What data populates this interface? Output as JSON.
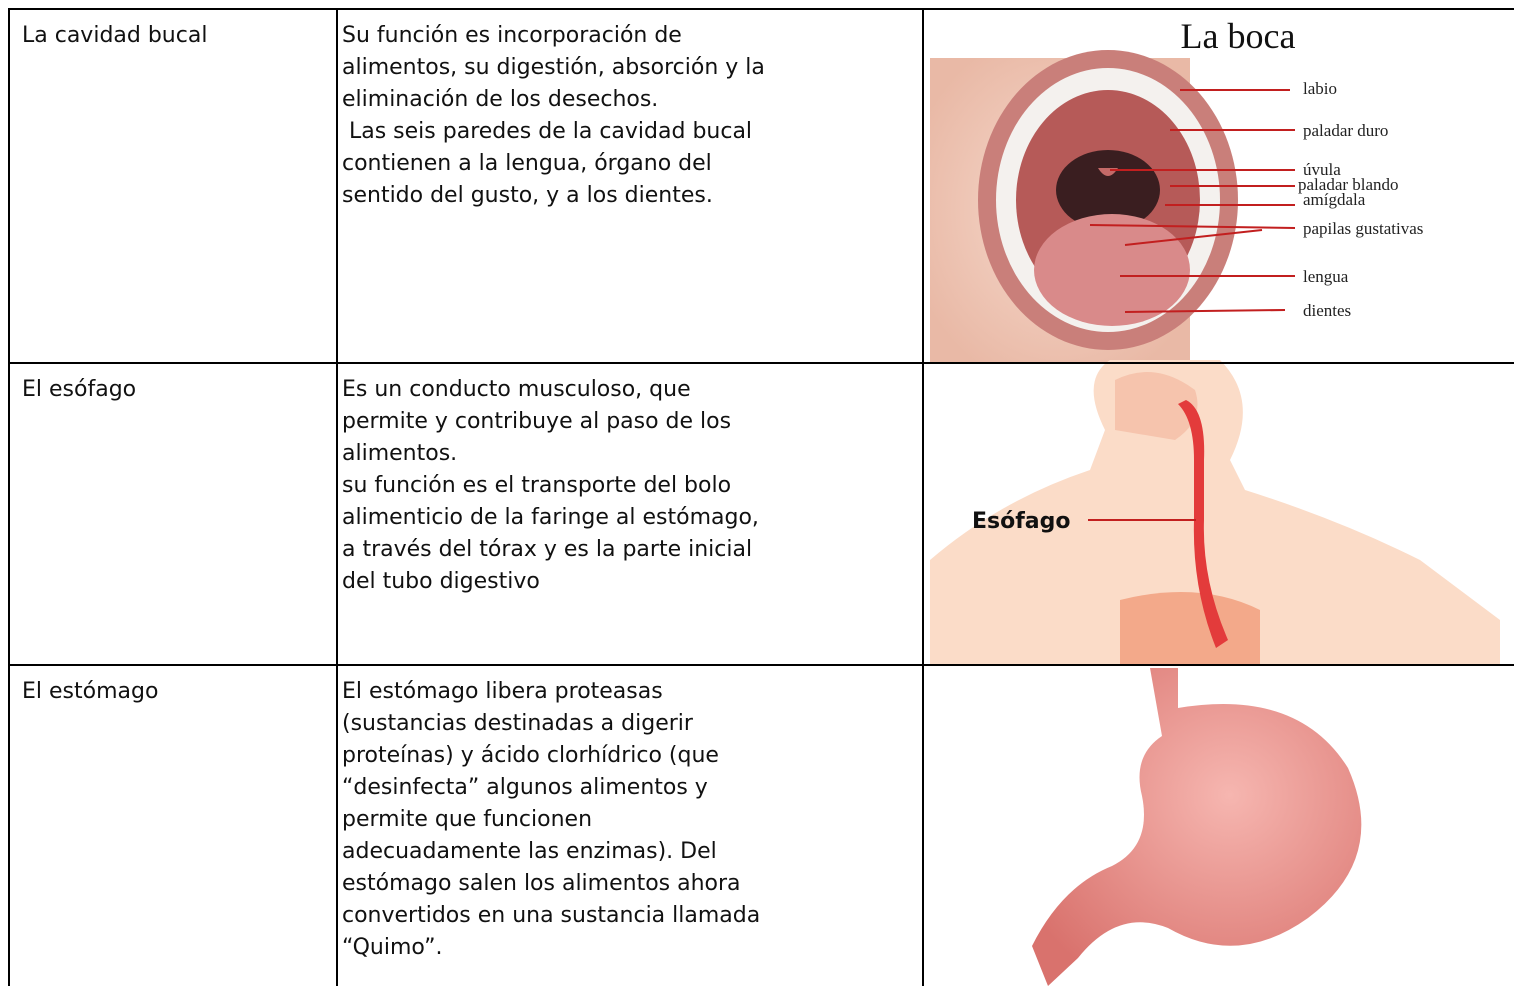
{
  "table": {
    "rows": [
      {
        "organ": "La cavidad bucal",
        "description": [
          "Su función es incorporación de",
          "alimentos, su digestión, absorción y la",
          "eliminación de los desechos.",
          " Las seis paredes de la cavidad bucal",
          "contienen a la lengua, órgano del",
          "sentido del gusto, y a los dientes."
        ],
        "figure": {
          "title": "La boca",
          "labels": [
            "labio",
            "paladar duro",
            "úvula",
            "paladar blando",
            "amígdala",
            "papilas gustativas",
            "lengua",
            "dientes"
          ]
        }
      },
      {
        "organ": "El esófago",
        "description": [
          "Es un conducto musculoso, que",
          "permite y contribuye al paso de los",
          "alimentos.",
          "su función es el transporte del bolo",
          "alimenticio de la faringe al estómago,",
          "a través del tórax y es la parte inicial",
          "del tubo digestivo"
        ],
        "figure": {
          "labels": [
            "Esófago"
          ]
        }
      },
      {
        "organ": "El estómago",
        "description": [
          "El estómago libera proteasas",
          "(sustancias destinadas a digerir",
          "proteínas) y ácido clorhídrico (que",
          "“desinfecta” algunos alimentos y",
          "permite que funcionen",
          "adecuadamente las enzimas). Del",
          "estómago salen los alimentos ahora",
          "convertidos en una sustancia llamada",
          "“Quimo”."
        ]
      }
    ]
  }
}
